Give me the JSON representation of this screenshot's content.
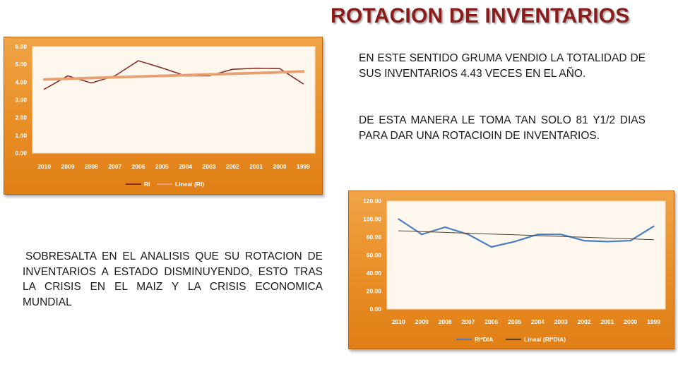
{
  "title": "ROTACION DE INVENTARIOS",
  "paragraphs": {
    "p1": "EN ESTE SENTIDO GRUMA VENDIO LA TOTALIDAD DE SUS INVENTARIOS 4.43 VECES EN EL AÑO.",
    "p2": "DE  ESTA MANERA LE TOMA TAN SOLO 81 Y1/2 DIAS PARA DAR UNA ROTACIOIN DE INVENTARIOS.",
    "p3": "SOBRESALTA EN EL ANALISIS QUE SU ROTACION DE INVENTARIOS A ESTADO DISMINUYENDO, ESTO TRAS LA CRISIS EN EL MAIZ Y LA CRISIS ECONOMICA MUNDIAL"
  },
  "colors": {
    "title": "#8b1c1c",
    "frame": "#e98d25",
    "series_ri": "#8b2f2a",
    "trend_ri": "#e8a070",
    "series_ridia": "#4a7ec4",
    "trend_ridia": "#5a4030"
  },
  "chart_data": [
    {
      "type": "line",
      "categories": [
        "2010",
        "2009",
        "2008",
        "2007",
        "2006",
        "2005",
        "2004",
        "2003",
        "2002",
        "2001",
        "2000",
        "1999"
      ],
      "series": [
        {
          "name": "RI",
          "values": [
            3.6,
            4.35,
            3.95,
            4.35,
            5.2,
            4.8,
            4.35,
            4.35,
            4.72,
            4.78,
            4.76,
            3.9
          ]
        },
        {
          "name": "Lineal (RI)",
          "values": [
            4.15,
            4.19,
            4.23,
            4.27,
            4.31,
            4.35,
            4.39,
            4.43,
            4.47,
            4.51,
            4.55,
            4.6
          ],
          "trendline": true
        }
      ],
      "yticks": [
        "6.00",
        "5.00",
        "4.00",
        "3.00",
        "2.00",
        "1.00",
        "0.00"
      ],
      "ylim": [
        0,
        6
      ],
      "grid": false,
      "legend": "bottom"
    },
    {
      "type": "line",
      "categories": [
        "2010",
        "2009",
        "2008",
        "2007",
        "2006",
        "2005",
        "2004",
        "2003",
        "2002",
        "2001",
        "2000",
        "1999"
      ],
      "series": [
        {
          "name": "RI*DIA",
          "values": [
            100,
            83,
            91,
            83,
            69,
            75,
            83,
            83,
            76,
            75,
            76,
            92
          ]
        },
        {
          "name": "Lineal (RI*DIA)",
          "values": [
            87,
            86.1,
            85.2,
            84.3,
            83.4,
            82.5,
            81.6,
            80.7,
            79.8,
            78.9,
            78,
            77.1
          ],
          "trendline": true
        }
      ],
      "yticks": [
        "120.00",
        "100.00",
        "80.00",
        "60.00",
        "40.00",
        "20.00",
        "0.00"
      ],
      "ylim": [
        0,
        120
      ],
      "grid": false,
      "legend": "bottom"
    }
  ]
}
